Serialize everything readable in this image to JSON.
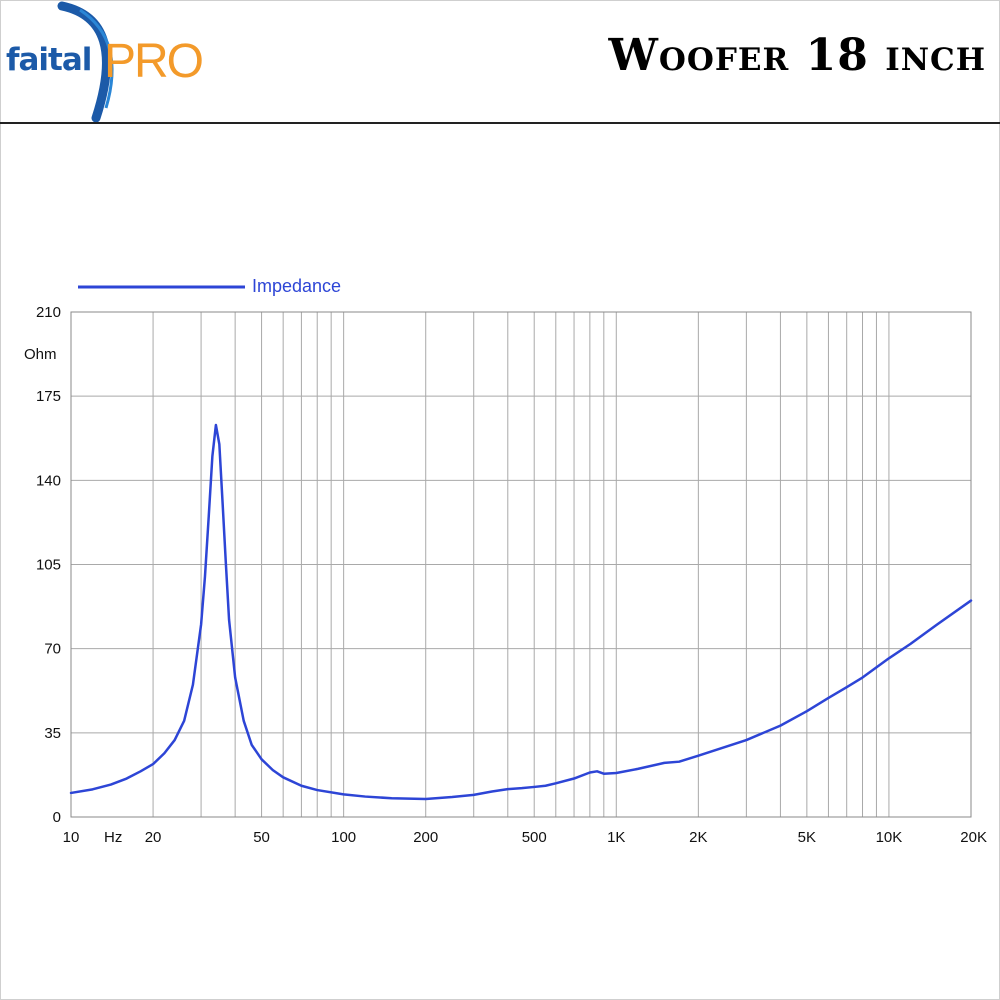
{
  "header": {
    "logo_text_left": "faital",
    "logo_text_right": "PRO",
    "title": "Woofer 18 inch"
  },
  "colors": {
    "series": "#2d45d6",
    "logo_blue": "#1c5aa8",
    "logo_orange": "#f39a2a",
    "grid": "#a9a9a9"
  },
  "chart_data": {
    "type": "line",
    "title": "",
    "legend": {
      "entries": [
        "Impedance"
      ],
      "placement": "top-left"
    },
    "xlabel": "Hz",
    "ylabel": "Ohm",
    "x_scale": "log",
    "xlim": [
      10,
      20000
    ],
    "ylim": [
      0,
      210
    ],
    "grid": true,
    "y_ticks": [
      0,
      35,
      70,
      105,
      140,
      175,
      210
    ],
    "x_tick_labels": [
      {
        "value": 10,
        "label": "10"
      },
      {
        "value": 20,
        "label": "20"
      },
      {
        "value": 50,
        "label": "50"
      },
      {
        "value": 100,
        "label": "100"
      },
      {
        "value": 200,
        "label": "200"
      },
      {
        "value": 500,
        "label": "500"
      },
      {
        "value": 1000,
        "label": "1K"
      },
      {
        "value": 2000,
        "label": "2K"
      },
      {
        "value": 5000,
        "label": "5K"
      },
      {
        "value": 10000,
        "label": "10K"
      },
      {
        "value": 20000,
        "label": "20K"
      }
    ],
    "series": [
      {
        "name": "Impedance",
        "x": [
          10,
          12,
          14,
          16,
          18,
          20,
          22,
          24,
          26,
          28,
          30,
          31,
          32,
          33,
          34,
          35,
          36,
          37,
          38,
          40,
          43,
          46,
          50,
          55,
          60,
          70,
          80,
          100,
          120,
          150,
          200,
          250,
          300,
          350,
          400,
          450,
          500,
          550,
          600,
          700,
          800,
          850,
          900,
          1000,
          1200,
          1500,
          1700,
          2000,
          3000,
          4000,
          5000,
          6000,
          7000,
          8000,
          10000,
          12000,
          15000,
          20000
        ],
        "y": [
          10,
          11.5,
          13.5,
          16,
          19,
          22,
          26.5,
          32,
          40,
          55,
          80,
          100,
          125,
          150,
          163,
          155,
          130,
          105,
          82,
          58,
          40,
          30,
          24,
          19.5,
          16.5,
          13,
          11.2,
          9.4,
          8.5,
          7.8,
          7.5,
          8.3,
          9.2,
          10.6,
          11.6,
          12,
          12.5,
          13,
          14,
          16,
          18.5,
          19,
          18,
          18.3,
          20,
          22.5,
          23,
          25.5,
          32,
          38,
          44,
          49.5,
          54,
          58,
          66,
          72,
          80,
          90
        ]
      }
    ]
  }
}
